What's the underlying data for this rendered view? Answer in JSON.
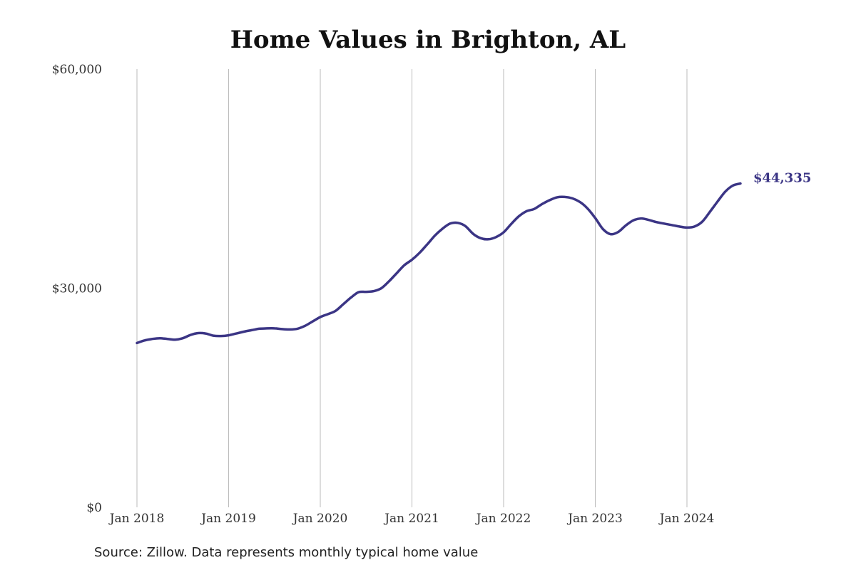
{
  "chart_data": {
    "type": "line",
    "title": "Home Values in Brighton, AL",
    "xlabel": "",
    "ylabel": "",
    "source": "Source: Zillow. Data represents monthly typical home value",
    "ylim": [
      0,
      60000
    ],
    "y_ticks": [
      0,
      30000,
      60000
    ],
    "y_tick_labels": [
      "$0",
      "$30,000",
      "$60,000"
    ],
    "x_ticks": [
      "2018-01",
      "2019-01",
      "2020-01",
      "2021-01",
      "2022-01",
      "2023-01",
      "2024-01"
    ],
    "x_tick_labels": [
      "Jan 2018",
      "Jan 2019",
      "Jan 2020",
      "Jan 2021",
      "Jan 2022",
      "Jan 2023",
      "Jan 2024"
    ],
    "grid": "vertical",
    "line_color": "#3b3585",
    "end_label": "$44,335",
    "series": [
      {
        "x": [
          "2018-01",
          "2018-02",
          "2018-03",
          "2018-04",
          "2018-05",
          "2018-06",
          "2018-07",
          "2018-08",
          "2018-09",
          "2018-10",
          "2018-11",
          "2018-12",
          "2019-01",
          "2019-02",
          "2019-03",
          "2019-04",
          "2019-05",
          "2019-06",
          "2019-07",
          "2019-08",
          "2019-09",
          "2019-10",
          "2019-11",
          "2019-12",
          "2020-01",
          "2020-02",
          "2020-03",
          "2020-04",
          "2020-05",
          "2020-06",
          "2020-07",
          "2020-08",
          "2020-09",
          "2020-10",
          "2020-11",
          "2020-12",
          "2021-01",
          "2021-02",
          "2021-03",
          "2021-04",
          "2021-05",
          "2021-06",
          "2021-07",
          "2021-08",
          "2021-09",
          "2021-10",
          "2021-11",
          "2021-12",
          "2022-01",
          "2022-02",
          "2022-03",
          "2022-04",
          "2022-05",
          "2022-06",
          "2022-07",
          "2022-08",
          "2022-09",
          "2022-10",
          "2022-11",
          "2022-12",
          "2023-01",
          "2023-02",
          "2023-03",
          "2023-04",
          "2023-05",
          "2023-06",
          "2023-07",
          "2023-08",
          "2023-09",
          "2023-10",
          "2023-11",
          "2023-12",
          "2024-01",
          "2024-02",
          "2024-03",
          "2024-04",
          "2024-05",
          "2024-06",
          "2024-07",
          "2024-08"
        ],
        "values": [
          22500,
          22850,
          23050,
          23150,
          23050,
          22950,
          23150,
          23600,
          23850,
          23800,
          23500,
          23450,
          23550,
          23800,
          24050,
          24250,
          24450,
          24500,
          24500,
          24400,
          24350,
          24450,
          24850,
          25450,
          26050,
          26450,
          26900,
          27800,
          28700,
          29450,
          29500,
          29600,
          30000,
          30950,
          32050,
          33150,
          33900,
          34850,
          36000,
          37200,
          38150,
          38850,
          38950,
          38500,
          37450,
          36850,
          36700,
          37000,
          37650,
          38800,
          39850,
          40550,
          40850,
          41500,
          42050,
          42450,
          42500,
          42300,
          41800,
          40900,
          39600,
          38100,
          37400,
          37700,
          38600,
          39300,
          39550,
          39350,
          39050,
          38850,
          38650,
          38450,
          38300,
          38450,
          39100,
          40450,
          41850,
          43200,
          44050,
          44335
        ]
      }
    ]
  }
}
